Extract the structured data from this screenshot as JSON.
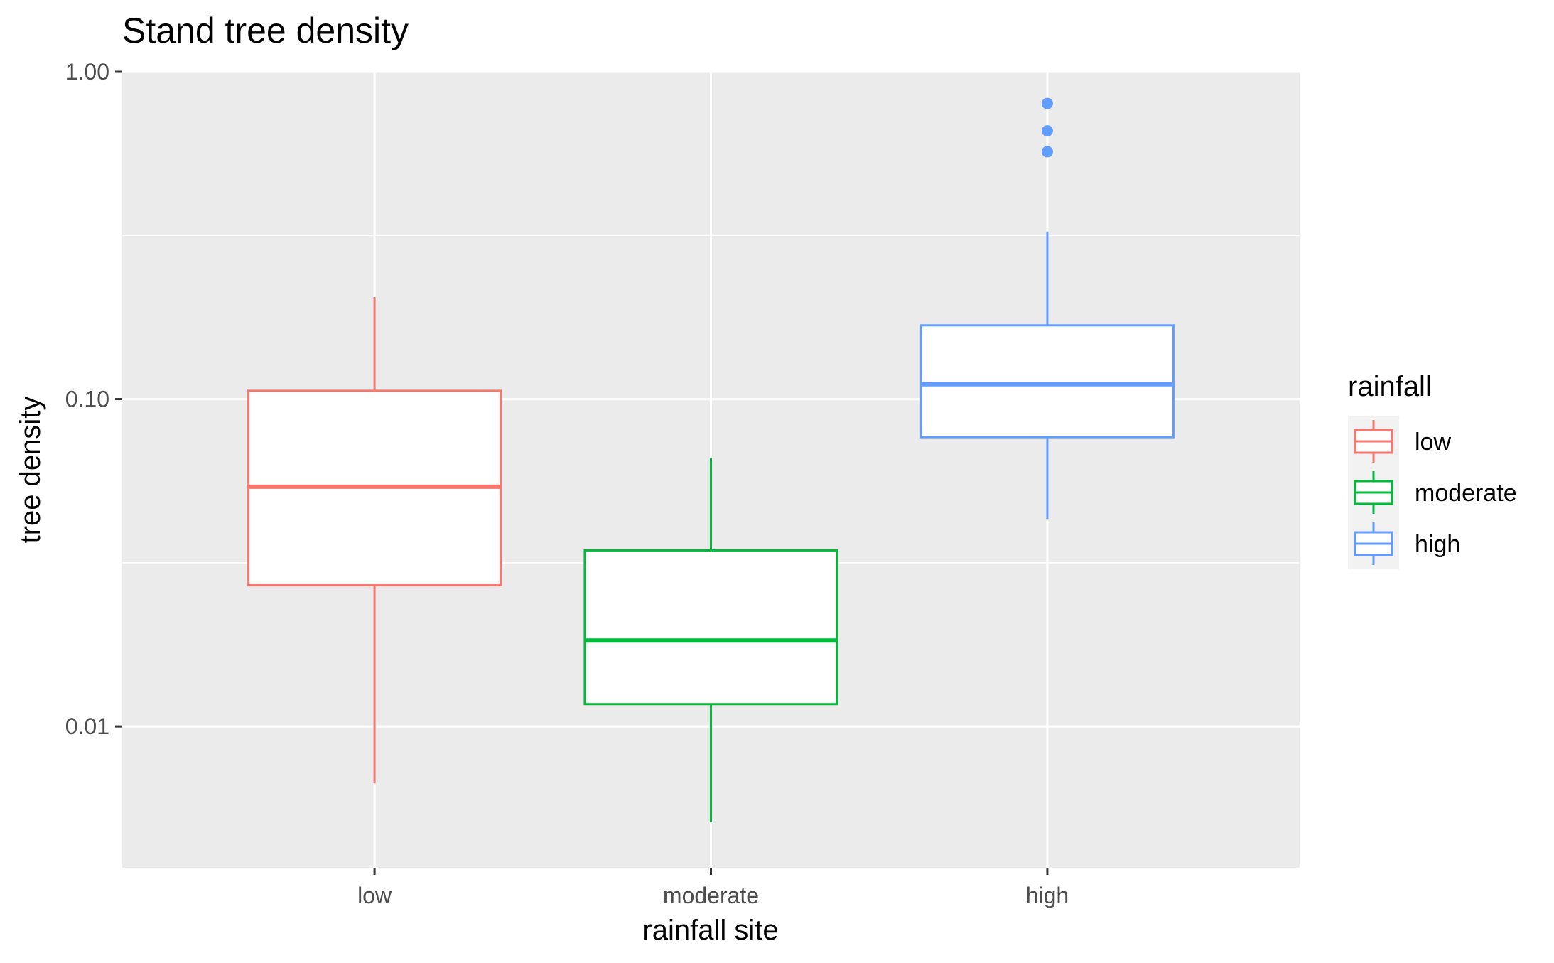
{
  "chart_data": {
    "type": "boxplot",
    "title": "Stand tree density",
    "xlabel": "rainfall site",
    "ylabel": "tree density",
    "y_scale": "log10",
    "ylim": [
      0.0037,
      1.0
    ],
    "y_ticks": [
      0.01,
      0.1,
      1.0
    ],
    "y_tick_labels": [
      "0.01",
      "0.10",
      "1.00"
    ],
    "categories": [
      "low",
      "moderate",
      "high"
    ],
    "grid": true,
    "legend": {
      "title": "rainfall",
      "position": "right",
      "entries": [
        "low",
        "moderate",
        "high"
      ]
    },
    "colors": {
      "low": "#F8766D",
      "moderate": "#00BA38",
      "high": "#619CFF",
      "panel_bg": "#EBEBEB",
      "grid": "#FFFFFF"
    },
    "series": [
      {
        "category": "low",
        "whisker_low": 0.0067,
        "q1": 0.027,
        "median": 0.054,
        "q3": 0.106,
        "whisker_high": 0.205,
        "outliers": []
      },
      {
        "category": "moderate",
        "whisker_low": 0.0051,
        "q1": 0.0117,
        "median": 0.0183,
        "q3": 0.0345,
        "whisker_high": 0.066,
        "outliers": []
      },
      {
        "category": "high",
        "whisker_low": 0.043,
        "q1": 0.0765,
        "median": 0.111,
        "q3": 0.168,
        "whisker_high": 0.325,
        "outliers": [
          0.57,
          0.66,
          0.8
        ]
      }
    ]
  }
}
